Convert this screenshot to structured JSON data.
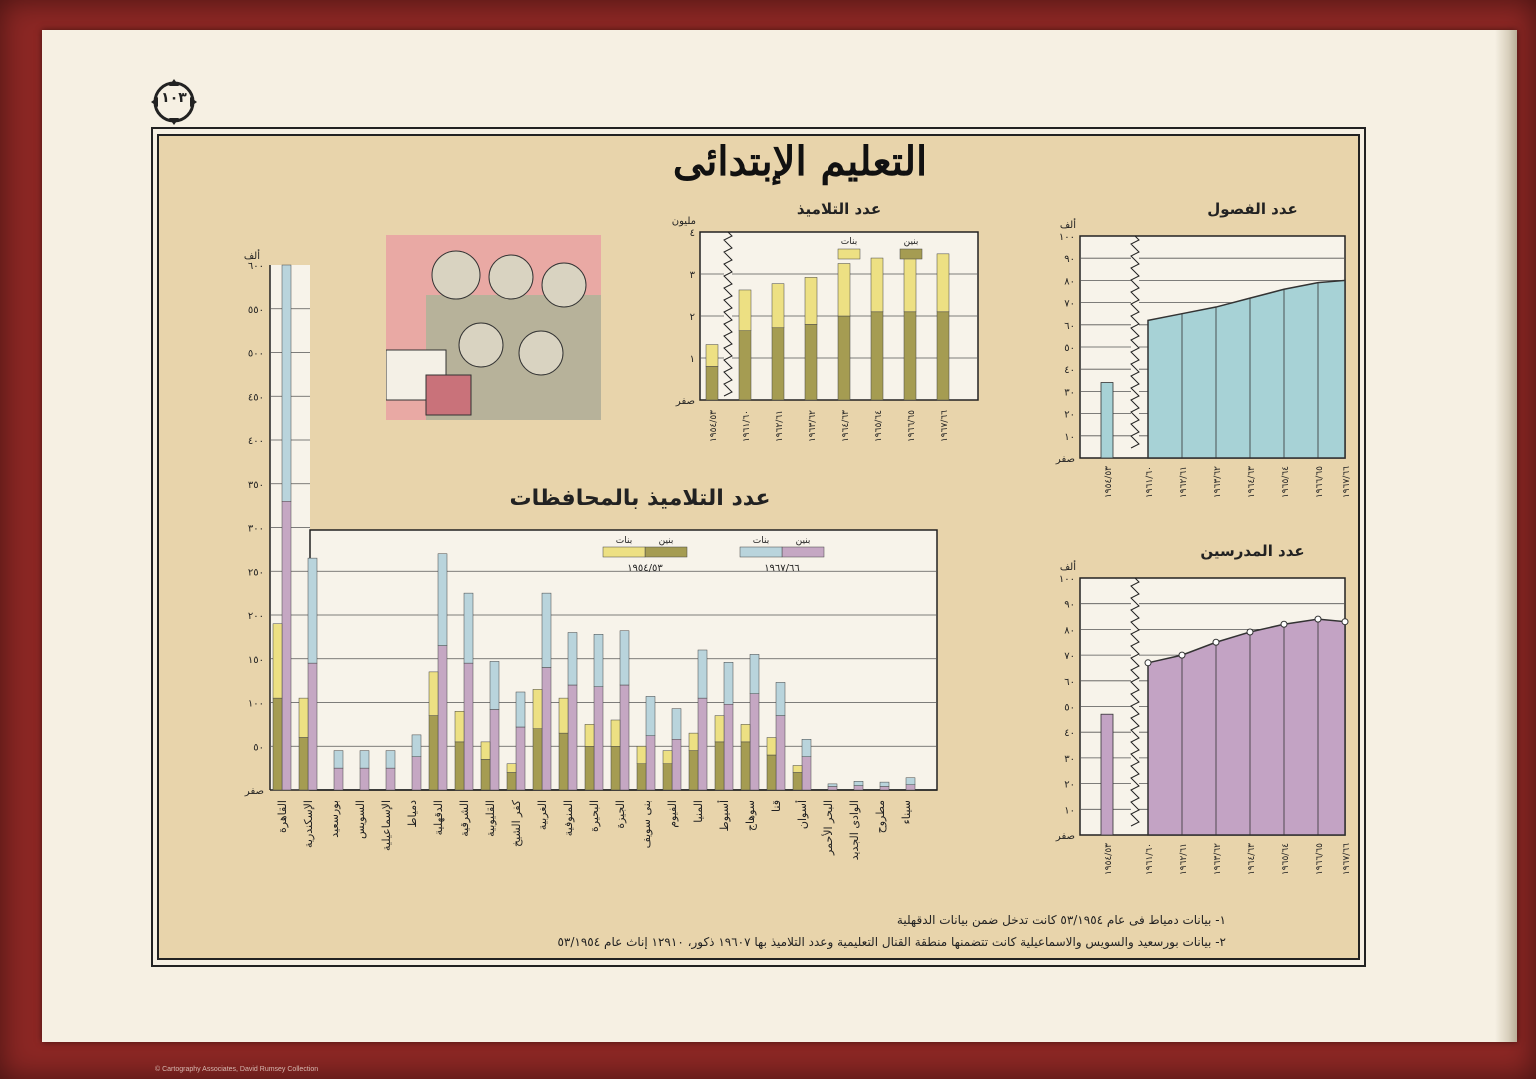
{
  "page": {
    "number": "١٠٣",
    "title": "التعليم الإبتدائى",
    "credit": "© Cartography Associates, David Rumsey Collection",
    "footnotes": [
      "١- بيانات دمياط فى عام ٥٣/١٩٥٤ كانت تدخل ضمن بيانات الدقهلية",
      "٢- بيانات بورسعيد والسويس والاسماعيلية كانت تتضمنها منطقة القنال التعليمية وعدد التلاميذ بها ١٩٦٠٧ ذكور، ١٢٩١٠ إناث عام ٥٣/١٩٥٤"
    ]
  },
  "colors": {
    "paper": "#e8d4ab",
    "boys_1954": "#a59c52",
    "girls_1954": "#ede083",
    "boys_1967": "#c5a7c3",
    "girls_1967": "#b9d4dc",
    "classes_fill": "#a7d2d6",
    "teachers_fill": "#c3a3c4"
  },
  "chart_data": [
    {
      "id": "pupils",
      "type": "bar",
      "title": "عدد التلاميذ",
      "unit": "مليون",
      "categories": [
        "١٩٥٤/٥٣",
        "١٩٦١/٦٠",
        "١٩٦٢/٦١",
        "١٩٦٣/٦٢",
        "١٩٦٤/٦٣",
        "١٩٦٥/٦٤",
        "١٩٦٦/٦٥",
        "١٩٦٧/٦٦"
      ],
      "series": [
        {
          "name": "بنين",
          "values": [
            0.8,
            1.65,
            1.72,
            1.8,
            2.0,
            2.1,
            2.1,
            2.1
          ]
        },
        {
          "name": "بنات",
          "values": [
            0.52,
            0.97,
            1.05,
            1.12,
            1.25,
            1.28,
            1.4,
            1.38
          ]
        }
      ],
      "stacked": true,
      "ylim": [
        0,
        4
      ],
      "yticks": [
        "صفر",
        "١",
        "٢",
        "٣",
        "٤"
      ]
    },
    {
      "id": "classes",
      "type": "area",
      "title": "عدد الفصول",
      "unit": "ألف",
      "categories": [
        "١٩٥٤/٥٣",
        "١٩٦١/٦٠",
        "١٩٦٢/٦١",
        "١٩٦٣/٦٢",
        "١٩٦٤/٦٣",
        "١٩٦٥/٦٤",
        "١٩٦٦/٦٥",
        "١٩٦٧/٦٦"
      ],
      "values": [
        34,
        62,
        65,
        68,
        72,
        76,
        79,
        80
      ],
      "ylim": [
        0,
        100
      ],
      "yticks": [
        "صفر",
        "١٠",
        "٢٠",
        "٣٠",
        "٤٠",
        "٥٠",
        "٦٠",
        "٧٠",
        "٨٠",
        "٩٠",
        "١٠٠"
      ]
    },
    {
      "id": "teachers",
      "type": "area",
      "title": "عدد المدرسين",
      "unit": "ألف",
      "categories": [
        "١٩٥٤/٥٣",
        "١٩٦١/٦٠",
        "١٩٦٢/٦١",
        "١٩٦٣/٦٢",
        "١٩٦٤/٦٣",
        "١٩٦٥/٦٤",
        "١٩٦٦/٦٥",
        "١٩٦٧/٦٦"
      ],
      "values": [
        47,
        67,
        70,
        75,
        79,
        82,
        84,
        83
      ],
      "ylim": [
        0,
        100
      ],
      "yticks": [
        "صفر",
        "١٠",
        "٢٠",
        "٣٠",
        "٤٠",
        "٥٠",
        "٦٠",
        "٧٠",
        "٨٠",
        "٩٠",
        "١٠٠"
      ]
    },
    {
      "id": "governorates",
      "type": "bar",
      "title": "عدد التلاميذ بالمحافظات",
      "unit": "ألف",
      "ylim": [
        0,
        600
      ],
      "yticks": [
        "صفر",
        "٥٠",
        "١٠٠",
        "١٥٠",
        "٢٠٠",
        "٢٥٠",
        "٣٠٠",
        "٣٥٠",
        "٤٠٠",
        "٤٥٠",
        "٥٠٠",
        "٥٥٠",
        "٦٠٠"
      ],
      "legend": {
        "y1954": "١٩٥٤/٥٣",
        "y1967": "١٩٦٧/٦٦",
        "boys": "بنين",
        "girls": "بنات"
      },
      "categories": [
        "القاهرة",
        "الإسكندرية",
        "بورسعيد",
        "السويس",
        "الإسماعيلية",
        "دمياط",
        "الدقهلية",
        "الشرقية",
        "القليوبية",
        "كفر الشيخ",
        "الغربية",
        "المنوفية",
        "البحيرة",
        "الجيزة",
        "بنى سويف",
        "الفيوم",
        "المنيا",
        "أسيوط",
        "سوهاج",
        "قنا",
        "أسوان",
        "البحر الأحمر",
        "الوادى الجديد",
        "مطروح",
        "سيناء"
      ],
      "series": [
        {
          "name": "بنين ١٩٥٤/٥٣",
          "values": [
            105,
            60,
            0,
            0,
            0,
            0,
            85,
            55,
            35,
            20,
            70,
            65,
            50,
            50,
            30,
            30,
            45,
            55,
            55,
            40,
            20,
            0,
            0,
            0,
            0
          ]
        },
        {
          "name": "بنات ١٩٥٤/٥٣",
          "values": [
            85,
            45,
            0,
            0,
            0,
            0,
            50,
            35,
            20,
            10,
            45,
            40,
            25,
            30,
            20,
            15,
            20,
            30,
            20,
            20,
            8,
            0,
            0,
            0,
            0
          ]
        },
        {
          "name": "بنين ١٩٦٧/٦٦",
          "values": [
            330,
            145,
            25,
            25,
            25,
            38,
            165,
            145,
            92,
            72,
            140,
            120,
            118,
            120,
            62,
            58,
            105,
            98,
            110,
            85,
            38,
            4,
            5,
            4,
            6
          ]
        },
        {
          "name": "بنات ١٩٦٧/٦٦",
          "values": [
            270,
            120,
            20,
            20,
            20,
            25,
            105,
            80,
            55,
            40,
            85,
            60,
            60,
            62,
            45,
            35,
            55,
            48,
            45,
            38,
            20,
            3,
            5,
            5,
            8
          ]
        }
      ]
    }
  ]
}
